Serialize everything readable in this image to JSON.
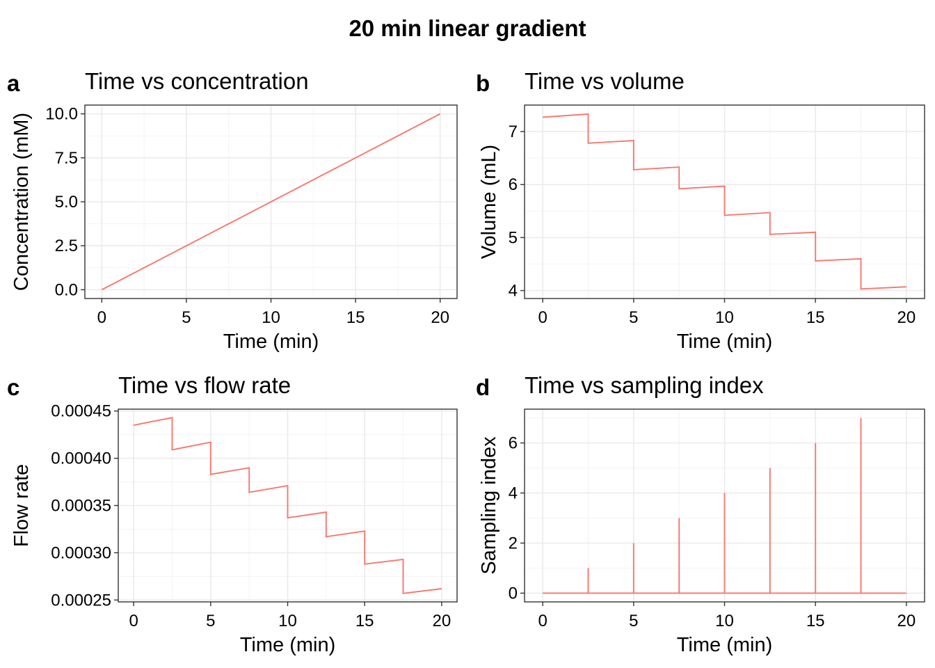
{
  "title": "20 min linear gradient",
  "colors": {
    "line": "#F8766D",
    "grid_major": "#EBEBEB",
    "grid_minor": "#F3F3F3",
    "border": "#333333"
  },
  "chart_data": [
    {
      "tag": "a",
      "subtitle": "Time vs concentration",
      "type": "line",
      "xlabel": "Time (min)",
      "ylabel": "Concentration (mM)",
      "xlim": [
        -1,
        21
      ],
      "ylim": [
        -0.5,
        10.5
      ],
      "xticks": [
        0,
        5,
        10,
        15,
        20
      ],
      "xtick_labels": [
        "0",
        "5",
        "10",
        "15",
        "20"
      ],
      "yticks": [
        0,
        2.5,
        5,
        7.5,
        10
      ],
      "ytick_labels": [
        "0.0",
        "2.5",
        "5.0",
        "7.5",
        "10.0"
      ],
      "grid": true,
      "x": [
        0,
        20
      ],
      "y": [
        0,
        10
      ]
    },
    {
      "tag": "b",
      "subtitle": "Time vs volume",
      "type": "line",
      "xlabel": "Time (min)",
      "ylabel": "Volume (mL)",
      "xlim": [
        -1,
        21
      ],
      "ylim": [
        3.85,
        7.5
      ],
      "xticks": [
        0,
        5,
        10,
        15,
        20
      ],
      "xtick_labels": [
        "0",
        "5",
        "10",
        "15",
        "20"
      ],
      "yticks": [
        4,
        5,
        6,
        7
      ],
      "ytick_labels": [
        "4",
        "5",
        "6",
        "7"
      ],
      "grid": true,
      "x": [
        0,
        2.5,
        2.5,
        5,
        5,
        7.5,
        7.5,
        10,
        10,
        12.5,
        12.5,
        15,
        15,
        17.5,
        17.5,
        20
      ],
      "y": [
        7.27,
        7.33,
        6.78,
        6.83,
        6.28,
        6.33,
        5.92,
        5.97,
        5.42,
        5.47,
        5.06,
        5.1,
        4.56,
        4.6,
        4.03,
        4.07
      ]
    },
    {
      "tag": "c",
      "subtitle": "Time vs flow rate",
      "type": "line",
      "xlabel": "Time (min)",
      "ylabel": "Flow rate",
      "xlim": [
        -1,
        21
      ],
      "ylim": [
        0.000248,
        0.000452
      ],
      "xticks": [
        0,
        5,
        10,
        15,
        20
      ],
      "xtick_labels": [
        "0",
        "5",
        "10",
        "15",
        "20"
      ],
      "yticks": [
        0.00025,
        0.0003,
        0.00035,
        0.0004,
        0.00045
      ],
      "ytick_labels": [
        "0.00025",
        "0.00030",
        "0.00035",
        "0.00040",
        "0.00045"
      ],
      "grid": true,
      "x": [
        0,
        2.5,
        2.5,
        5,
        5,
        7.5,
        7.5,
        10,
        10,
        12.5,
        12.5,
        15,
        15,
        17.5,
        17.5,
        20
      ],
      "y": [
        0.000435,
        0.000443,
        0.000409,
        0.000417,
        0.000383,
        0.00039,
        0.000364,
        0.000371,
        0.000337,
        0.000343,
        0.000317,
        0.000323,
        0.000288,
        0.000293,
        0.000257,
        0.000262
      ]
    },
    {
      "tag": "d",
      "subtitle": "Time vs sampling index",
      "type": "line",
      "xlabel": "Time (min)",
      "ylabel": "Sampling index",
      "xlim": [
        -1,
        21
      ],
      "ylim": [
        -0.35,
        7.35
      ],
      "xticks": [
        0,
        5,
        10,
        15,
        20
      ],
      "xtick_labels": [
        "0",
        "5",
        "10",
        "15",
        "20"
      ],
      "yticks": [
        0,
        2,
        4,
        6
      ],
      "ytick_labels": [
        "0",
        "2",
        "4",
        "6"
      ],
      "grid": true,
      "x": [
        0,
        2.5,
        2.5,
        2.5,
        5,
        5,
        5,
        7.5,
        7.5,
        7.5,
        10,
        10,
        10,
        12.5,
        12.5,
        12.5,
        15,
        15,
        15,
        17.5,
        17.5,
        17.5,
        20
      ],
      "y": [
        0,
        0,
        1,
        0,
        0,
        2,
        0,
        0,
        3,
        0,
        0,
        4,
        0,
        0,
        5,
        0,
        0,
        6,
        0,
        0,
        7,
        0,
        0
      ]
    }
  ]
}
